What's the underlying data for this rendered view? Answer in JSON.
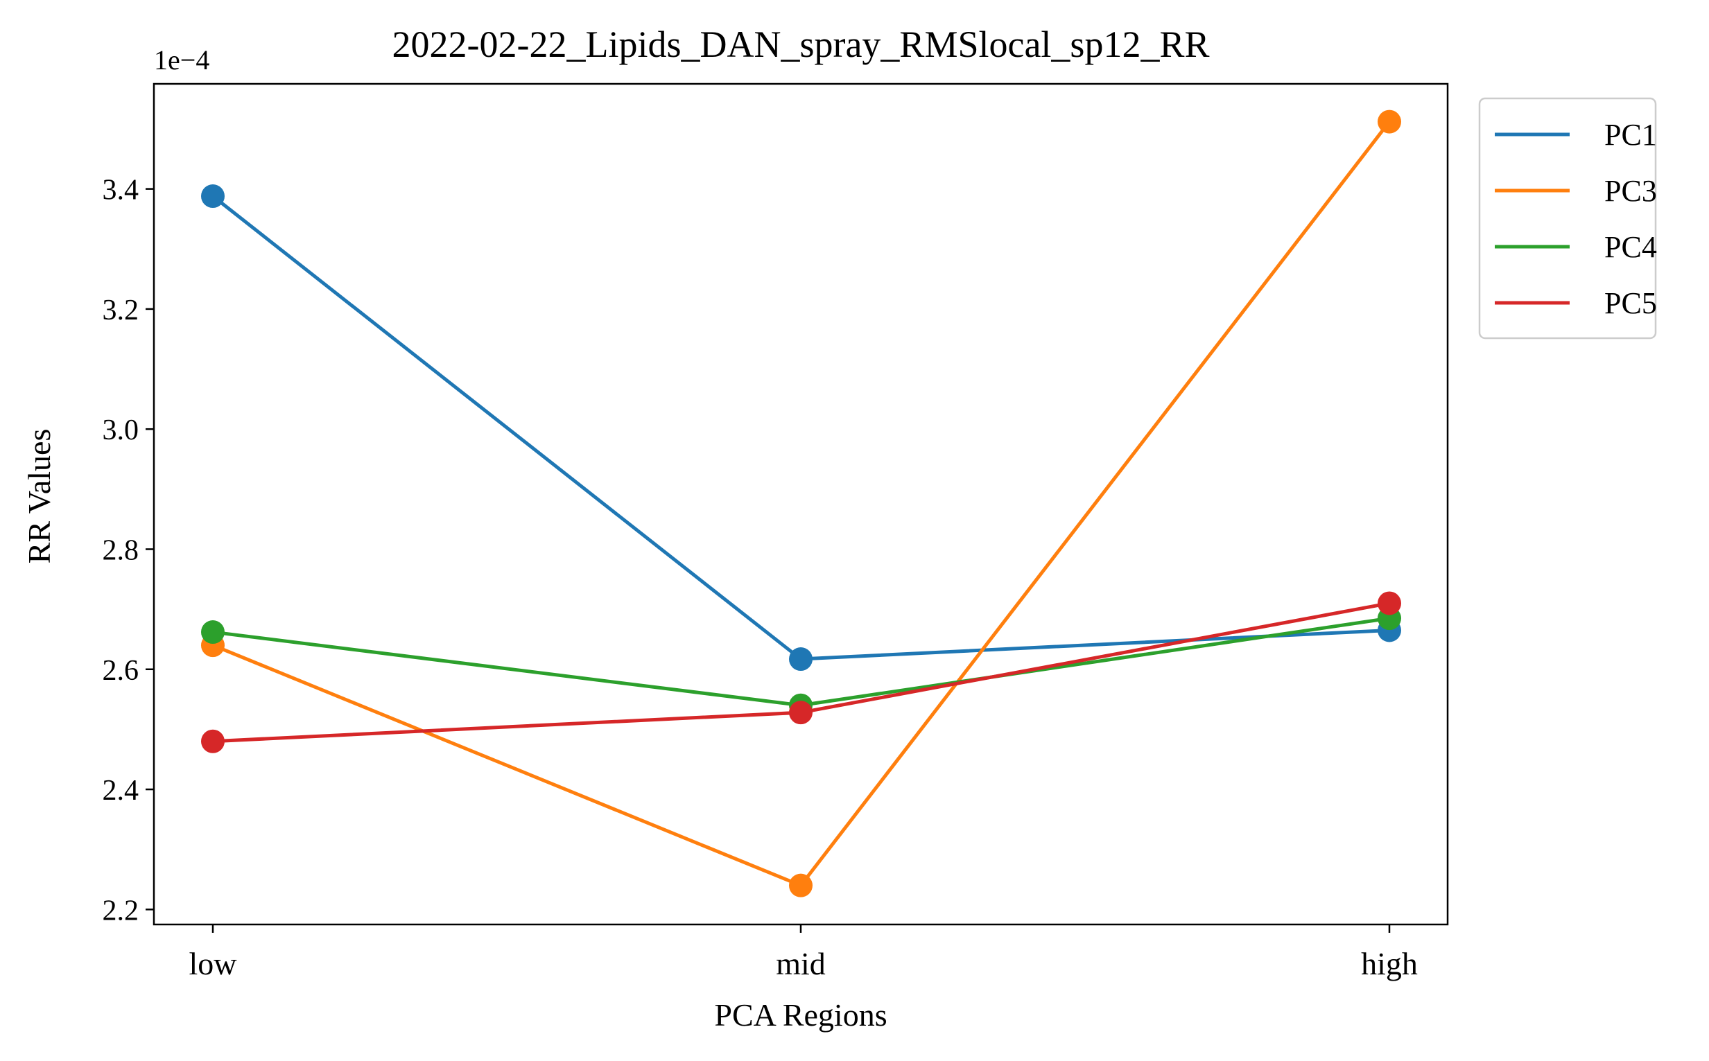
{
  "chart_data": {
    "type": "line",
    "title": "2022-02-22_Lipids_DAN_spray_RMSlocal_sp12_RR",
    "xlabel": "PCA Regions",
    "ylabel": "RR Values",
    "scale_label": "1e−4",
    "categories": [
      "low",
      "mid",
      "high"
    ],
    "ylim": [
      2.175,
      3.575
    ],
    "yticks": [
      2.2,
      2.4,
      2.6,
      2.8,
      3.0,
      3.2,
      3.4
    ],
    "ytick_labels": [
      "2.2",
      "2.4",
      "2.6",
      "2.8",
      "3.0",
      "3.2",
      "3.4"
    ],
    "grid": false,
    "legend_position": "outside-top-right",
    "series": [
      {
        "name": "PC1",
        "color": "#1f77b4",
        "values": [
          3.388,
          2.617,
          2.665
        ]
      },
      {
        "name": "PC3",
        "color": "#ff7f0e",
        "values": [
          2.64,
          2.24,
          3.512
        ]
      },
      {
        "name": "PC4",
        "color": "#2ca02c",
        "values": [
          2.662,
          2.54,
          2.685
        ]
      },
      {
        "name": "PC5",
        "color": "#d62728",
        "values": [
          2.48,
          2.528,
          2.71
        ]
      }
    ]
  }
}
